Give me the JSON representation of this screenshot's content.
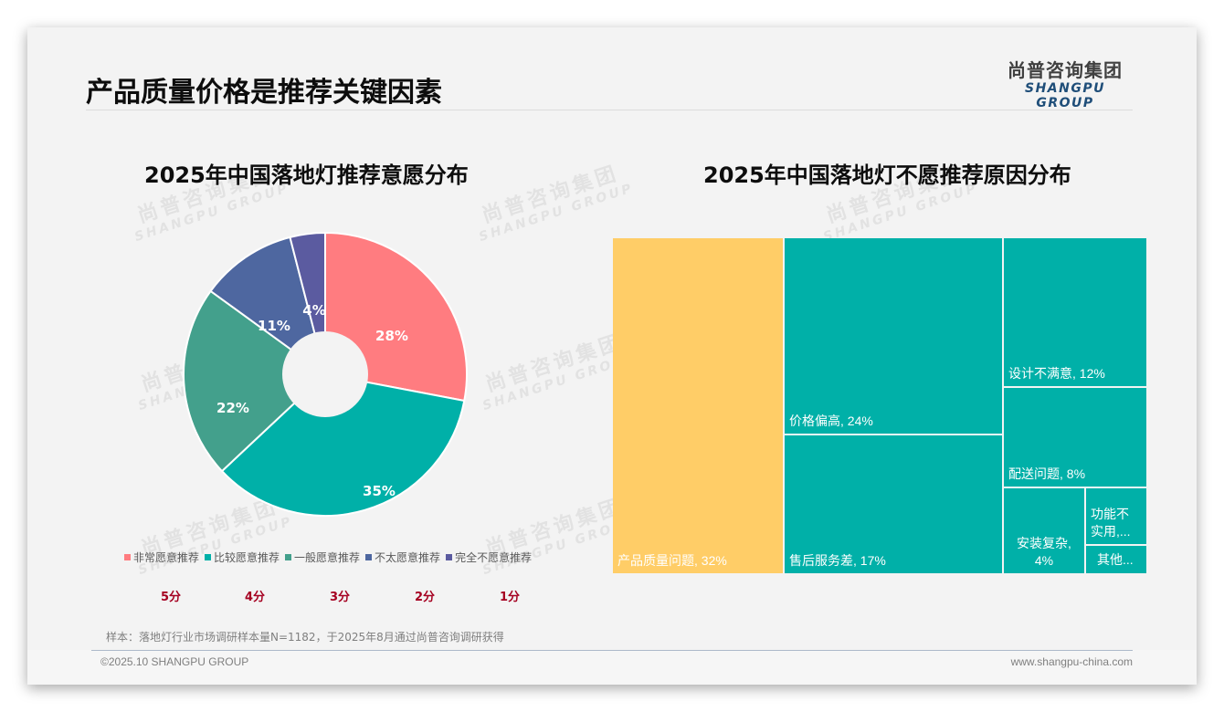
{
  "header": {
    "title": "产品质量价格是推荐关键因素",
    "logo_cn": "尚普咨询集团",
    "logo_en": "SHANGPU GROUP"
  },
  "watermark": {
    "cn": "尚普咨询集团",
    "en": "SHANGPU GROUP"
  },
  "left_chart": {
    "title": "2025年中国落地灯推荐意愿分布",
    "legend": [
      {
        "label": "非常愿意推荐",
        "color": "#FF7C80"
      },
      {
        "label": "比较愿意推荐",
        "color": "#00B0A8"
      },
      {
        "label": "一般愿意推荐",
        "color": "#43A08C"
      },
      {
        "label": "不太愿意推荐",
        "color": "#4E67A0"
      },
      {
        "label": "完全不愿意推荐",
        "color": "#5B5BA0"
      }
    ],
    "scores": [
      "5分",
      "4分",
      "3分",
      "2分",
      "1分"
    ],
    "slice_labels": [
      "28%",
      "35%",
      "22%",
      "11%",
      "4%"
    ]
  },
  "right_chart": {
    "title": "2025年中国落地灯不愿推荐原因分布",
    "tiles": [
      {
        "label": "产品质量问题, 32%",
        "color": "#FFCD67"
      },
      {
        "label": "价格偏高, 24%",
        "color": "#00B0A8"
      },
      {
        "label": "售后服务差, 17%",
        "color": "#00B0A8"
      },
      {
        "label": "设计不满意, 12%",
        "color": "#00B0A8"
      },
      {
        "label": "配送问题, 8%",
        "color": "#00B0A8"
      },
      {
        "label": "安装复杂, 4%",
        "label_line1": "安装复杂,",
        "label_line2": "4%",
        "color": "#00B0A8"
      },
      {
        "label": "功能不实用,...",
        "label_line1": "功能不",
        "label_line2": "实用,...",
        "color": "#00B0A8"
      },
      {
        "label": "其他...",
        "color": "#00B0A8"
      }
    ]
  },
  "footer": {
    "source": "样本：落地灯行业市场调研样本量N=1182，于2025年8月通过尚普咨询调研获得",
    "copyright": "©2025.10 SHANGPU GROUP",
    "website": "www.shangpu-china.com"
  },
  "chart_data": [
    {
      "type": "pie",
      "title": "2025年中国落地灯推荐意愿分布",
      "categories": [
        "非常愿意推荐",
        "比较愿意推荐",
        "一般愿意推荐",
        "不太愿意推荐",
        "完全不愿意推荐"
      ],
      "scores": [
        "5分",
        "4分",
        "3分",
        "2分",
        "1分"
      ],
      "values": [
        28,
        35,
        22,
        11,
        4
      ],
      "unit": "%",
      "donut": true,
      "colors": [
        "#FF7C80",
        "#00B0A8",
        "#43A08C",
        "#4E67A0",
        "#5B5BA0"
      ],
      "legend_position": "bottom"
    },
    {
      "type": "treemap",
      "title": "2025年中国落地灯不愿推荐原因分布",
      "categories": [
        "产品质量问题",
        "价格偏高",
        "售后服务差",
        "设计不满意",
        "配送问题",
        "安装复杂",
        "功能不实用",
        "其他"
      ],
      "values": [
        32,
        24,
        17,
        12,
        8,
        4,
        null,
        null
      ],
      "unit": "%",
      "colors": [
        "#FFCD67",
        "#00B0A8",
        "#00B0A8",
        "#00B0A8",
        "#00B0A8",
        "#00B0A8",
        "#00B0A8",
        "#00B0A8"
      ]
    }
  ]
}
